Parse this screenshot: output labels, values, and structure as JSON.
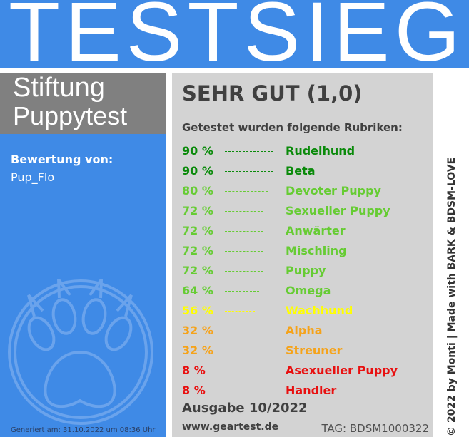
{
  "header": {
    "title": "TESTSIEGER"
  },
  "brand": {
    "line1": "Stiftung",
    "line2": "Puppytest"
  },
  "rating": {
    "label": "Bewertung von:",
    "name": "Pup_Flo"
  },
  "generated": "Generiert am: 31.10.2022 um 08:36 Uhr",
  "result": {
    "grade": "SEHR GUT (1,0)",
    "intro": "Getestet wurden folgende Rubriken:"
  },
  "categories": [
    {
      "percent": "90 %",
      "value": 0.9,
      "name": "Rudelhund",
      "color": "#0a8a0a"
    },
    {
      "percent": "90 %",
      "value": 0.9,
      "name": "Beta",
      "color": "#0a8a0a"
    },
    {
      "percent": "80 %",
      "value": 0.8,
      "name": "Devoter Puppy",
      "color": "#66cc33"
    },
    {
      "percent": "72 %",
      "value": 0.72,
      "name": "Sexueller Puppy",
      "color": "#66cc33"
    },
    {
      "percent": "72 %",
      "value": 0.72,
      "name": "Anwärter",
      "color": "#66cc33"
    },
    {
      "percent": "72 %",
      "value": 0.72,
      "name": "Mischling",
      "color": "#66cc33"
    },
    {
      "percent": "72 %",
      "value": 0.72,
      "name": "Puppy",
      "color": "#66cc33"
    },
    {
      "percent": "64 %",
      "value": 0.64,
      "name": "Omega",
      "color": "#66cc33"
    },
    {
      "percent": "56 %",
      "value": 0.56,
      "name": "Wachhund",
      "color": "#ffff00"
    },
    {
      "percent": "32 %",
      "value": 0.32,
      "name": "Alpha",
      "color": "#f5a31a"
    },
    {
      "percent": "32 %",
      "value": 0.32,
      "name": "Streuner",
      "color": "#f5a31a"
    },
    {
      "percent": "8 %",
      "value": 0.08,
      "name": "Asexueller Puppy",
      "color": "#e81010"
    },
    {
      "percent": "8 %",
      "value": 0.08,
      "name": "Handler",
      "color": "#e81010"
    }
  ],
  "issue": "Ausgabe 10/2022",
  "website": "www.geartest.de",
  "tag": "TAG: BDSM1000322",
  "copyright": "© 2022 by Monti | Made with BARK & BDSM-LOVE",
  "icons": {
    "paw": "paw-icon"
  },
  "colors": {
    "header_blue": "#3f8ae6",
    "brand_gray": "#808080",
    "panel_gray": "#d3d3d3"
  }
}
